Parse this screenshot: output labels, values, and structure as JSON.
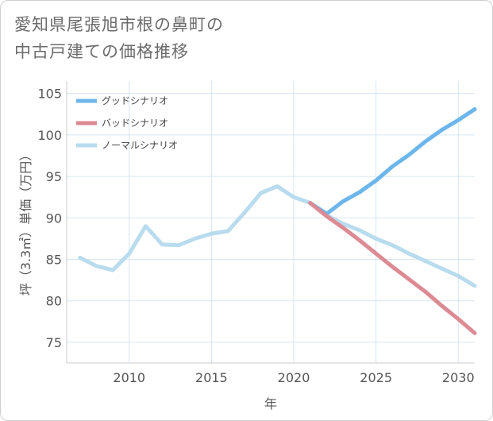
{
  "title_lines": [
    "愛知県尾張旭市根の鼻町の",
    "中古戸建ての価格推移"
  ],
  "colors": {
    "good": "#6cb6eb",
    "bad": "#dc8a93",
    "normal": "#b8dcee",
    "grid": "#d6e6f2",
    "axis": "#555555"
  },
  "chart_data": {
    "type": "line",
    "title": "愛知県尾張旭市根の鼻町の中古戸建ての価格推移",
    "xlabel": "年",
    "ylabel": "坪（3.3㎡）単価（万円）",
    "xlim": [
      2006.2,
      2031
    ],
    "ylim": [
      72.5,
      106.5
    ],
    "xticks": [
      2010,
      2015,
      2020,
      2025,
      2030
    ],
    "yticks": [
      75,
      80,
      85,
      90,
      95,
      100,
      105
    ],
    "grid": true,
    "legend_position": "top-left",
    "series": [
      {
        "name": "グッドシナリオ",
        "color": "#6cb6eb",
        "x": [
          2021,
          2022,
          2023,
          2024,
          2025,
          2026,
          2027,
          2028,
          2029,
          2030,
          2031
        ],
        "y": [
          91.8,
          90.5,
          92.0,
          93.1,
          94.5,
          96.2,
          97.6,
          99.2,
          100.6,
          101.8,
          103.1
        ]
      },
      {
        "name": "バッドシナリオ",
        "color": "#dc8a93",
        "x": [
          2021,
          2022,
          2023,
          2024,
          2025,
          2026,
          2027,
          2028,
          2029,
          2030,
          2031
        ],
        "y": [
          91.8,
          90.2,
          88.8,
          87.3,
          85.7,
          84.1,
          82.6,
          81.1,
          79.4,
          77.8,
          76.1
        ]
      },
      {
        "name": "ノーマルシナリオ",
        "color": "#b8dcee",
        "x": [
          2007,
          2008,
          2009,
          2010,
          2011,
          2012,
          2013,
          2014,
          2015,
          2016,
          2017,
          2018,
          2019,
          2020,
          2021,
          2022,
          2023,
          2024,
          2025,
          2026,
          2027,
          2028,
          2029,
          2030,
          2031
        ],
        "y": [
          85.2,
          84.2,
          83.7,
          85.7,
          89.0,
          86.8,
          86.7,
          87.5,
          88.1,
          88.4,
          90.6,
          93.0,
          93.8,
          92.5,
          91.8,
          90.3,
          89.3,
          88.5,
          87.5,
          86.7,
          85.7,
          84.8,
          83.9,
          83.0,
          81.8
        ]
      }
    ]
  }
}
